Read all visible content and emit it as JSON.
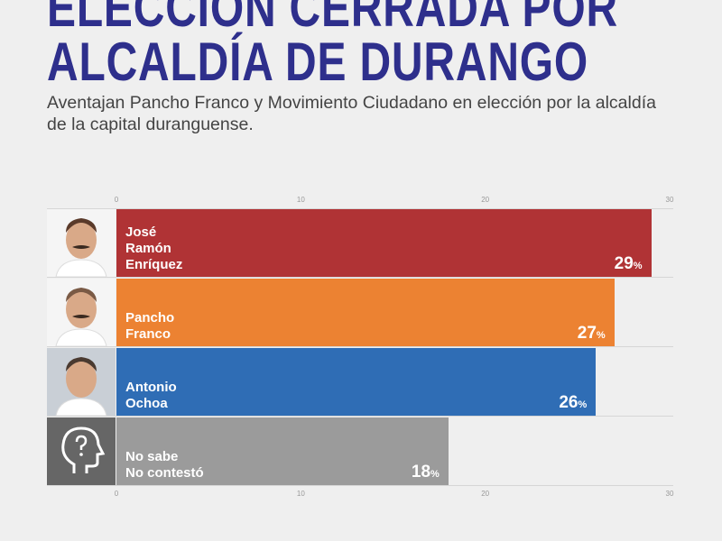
{
  "header": {
    "title_line1": "ELECCIÓN CERRADA POR",
    "title_line2": "ALCALDÍA DE DURANGO",
    "subtitle": "Aventajan Pancho Franco y Movimiento Ciudadano en elección por la alcaldía de la capital duranguense."
  },
  "chart_data": {
    "type": "bar",
    "orientation": "horizontal",
    "title": "ELECCIÓN CERRADA POR ALCALDÍA DE DURANGO",
    "categories": [
      "José Ramón Enríquez",
      "Pancho Franco",
      "Antonio Ochoa",
      "No sabe No contestó"
    ],
    "name_lines": [
      [
        "José",
        "Ramón",
        "Enríquez"
      ],
      [
        "Pancho",
        "Franco"
      ],
      [
        "Antonio",
        "Ochoa"
      ],
      [
        "No sabe",
        "No contestó"
      ]
    ],
    "values": [
      29,
      27,
      26,
      18
    ],
    "value_labels": [
      "29",
      "27",
      "26",
      "18"
    ],
    "unit": "%",
    "colors": [
      "#b03335",
      "#ec8232",
      "#2f6db5",
      "#9b9b9b"
    ],
    "xlim": [
      0,
      30
    ],
    "ticks": [
      "0",
      "10",
      "20",
      "30"
    ],
    "tick_values": [
      0,
      10,
      20,
      30
    ],
    "grid": false
  }
}
